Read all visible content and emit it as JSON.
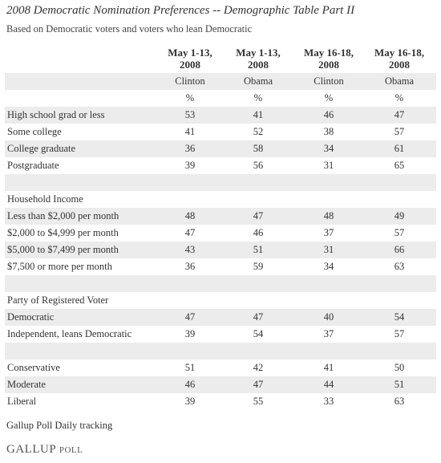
{
  "header": {
    "title": "2008 Democratic Nomination Preferences -- Demographic Table Part II",
    "subtitle": "Based on Democratic voters and voters who lean Democratic"
  },
  "table": {
    "columns": [
      {
        "date": [
          "May 1-13,",
          "2008"
        ],
        "candidate": "Clinton",
        "unit": "%"
      },
      {
        "date": [
          "May 1-13,",
          "2008"
        ],
        "candidate": "Obama",
        "unit": "%"
      },
      {
        "date": [
          "May 16-18,",
          "2008"
        ],
        "candidate": "Clinton",
        "unit": "%"
      },
      {
        "date": [
          "May 16-18,",
          "2008"
        ],
        "candidate": "Obama",
        "unit": "%"
      }
    ],
    "groups": [
      {
        "rows": [
          {
            "label": "High school grad or less",
            "values": [
              53,
              41,
              46,
              47
            ]
          },
          {
            "label": "Some college",
            "values": [
              41,
              52,
              38,
              57
            ]
          },
          {
            "label": "College graduate",
            "values": [
              36,
              58,
              34,
              61
            ]
          },
          {
            "label": "Postgraduate",
            "values": [
              39,
              56,
              31,
              65
            ]
          }
        ]
      },
      {
        "heading": "Household Income",
        "rows": [
          {
            "label": "Less than $2,000 per month",
            "values": [
              48,
              47,
              48,
              49
            ]
          },
          {
            "label": "$2,000 to $4,999 per month",
            "values": [
              47,
              46,
              37,
              57
            ]
          },
          {
            "label": "$5,000 to $7,499 per month",
            "values": [
              43,
              51,
              31,
              66
            ]
          },
          {
            "label": "$7,500 or more per month",
            "values": [
              36,
              59,
              34,
              63
            ]
          }
        ]
      },
      {
        "heading": "Party of Registered Voter",
        "rows": [
          {
            "label": "Democratic",
            "values": [
              47,
              47,
              40,
              54
            ]
          },
          {
            "label": "Independent, leans Democratic",
            "values": [
              39,
              54,
              37,
              57
            ]
          }
        ]
      },
      {
        "rows": [
          {
            "label": "Conservative",
            "values": [
              51,
              42,
              41,
              50
            ]
          },
          {
            "label": "Moderate",
            "values": [
              46,
              47,
              44,
              51
            ]
          },
          {
            "label": "Liberal",
            "values": [
              39,
              55,
              33,
              63
            ]
          }
        ]
      }
    ]
  },
  "footer": {
    "source": "Gallup Poll Daily tracking",
    "logo": [
      "GALLUP",
      "POLL"
    ]
  }
}
